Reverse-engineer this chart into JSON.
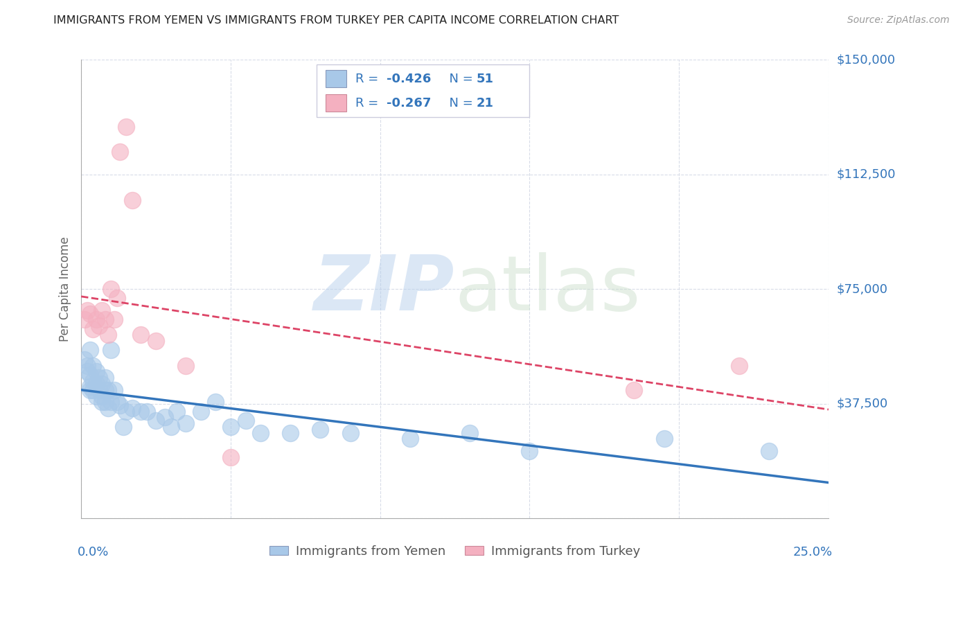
{
  "title": "IMMIGRANTS FROM YEMEN VS IMMIGRANTS FROM TURKEY PER CAPITA INCOME CORRELATION CHART",
  "source": "Source: ZipAtlas.com",
  "ylabel": "Per Capita Income",
  "xlim": [
    0.0,
    0.25
  ],
  "ylim": [
    0,
    150000
  ],
  "yticks": [
    0,
    37500,
    75000,
    112500,
    150000
  ],
  "ytick_labels": [
    "",
    "$37,500",
    "$75,000",
    "$112,500",
    "$150,000"
  ],
  "xtick_vals": [
    0.0,
    0.05,
    0.1,
    0.15,
    0.2,
    0.25
  ],
  "background_color": "#ffffff",
  "grid_color": "#d8dce8",
  "yemen_color": "#a8c8e8",
  "turkey_color": "#f4b0c0",
  "yemen_line_color": "#3375bb",
  "turkey_line_color": "#dd4466",
  "legend_text_color": "#3375bb",
  "legend_R_yemen": "-0.426",
  "legend_N_yemen": "51",
  "legend_R_turkey": "-0.267",
  "legend_N_turkey": "21",
  "yemen_x": [
    0.001,
    0.002,
    0.002,
    0.003,
    0.003,
    0.003,
    0.003,
    0.004,
    0.004,
    0.004,
    0.005,
    0.005,
    0.005,
    0.006,
    0.006,
    0.007,
    0.007,
    0.007,
    0.008,
    0.008,
    0.008,
    0.009,
    0.009,
    0.01,
    0.01,
    0.011,
    0.012,
    0.013,
    0.014,
    0.015,
    0.017,
    0.02,
    0.022,
    0.025,
    0.028,
    0.03,
    0.032,
    0.035,
    0.04,
    0.045,
    0.05,
    0.055,
    0.06,
    0.07,
    0.08,
    0.09,
    0.11,
    0.13,
    0.15,
    0.195,
    0.23
  ],
  "yemen_y": [
    52000,
    50000,
    48000,
    55000,
    47000,
    43000,
    42000,
    50000,
    45000,
    42000,
    48000,
    44000,
    40000,
    46000,
    42000,
    44000,
    40000,
    38000,
    46000,
    42000,
    38000,
    42000,
    36000,
    55000,
    38000,
    42000,
    38000,
    37000,
    30000,
    35000,
    36000,
    35000,
    35000,
    32000,
    33000,
    30000,
    35000,
    31000,
    35000,
    38000,
    30000,
    32000,
    28000,
    28000,
    29000,
    28000,
    26000,
    28000,
    22000,
    26000,
    22000
  ],
  "turkey_x": [
    0.001,
    0.002,
    0.003,
    0.004,
    0.005,
    0.006,
    0.007,
    0.008,
    0.009,
    0.01,
    0.011,
    0.012,
    0.013,
    0.015,
    0.017,
    0.02,
    0.025,
    0.035,
    0.05,
    0.185,
    0.22
  ],
  "turkey_y": [
    65000,
    68000,
    67000,
    62000,
    65000,
    63000,
    68000,
    65000,
    60000,
    75000,
    65000,
    72000,
    120000,
    128000,
    104000,
    60000,
    58000,
    50000,
    20000,
    42000,
    50000
  ]
}
